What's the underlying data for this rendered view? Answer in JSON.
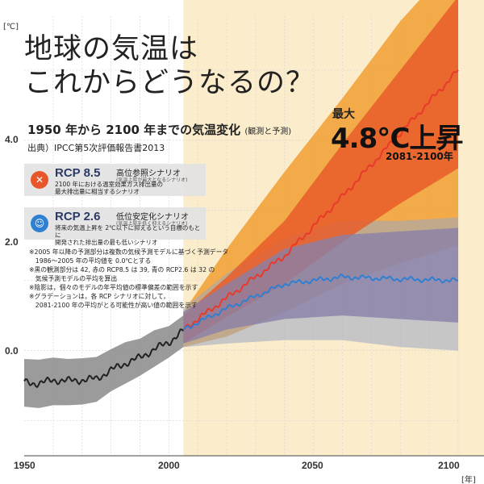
{
  "title_line1": "地球の気温は",
  "title_line2": "これからどうなるの？",
  "subtitle": "1950 年から 2100 年までの気温変化",
  "subtitle_note": "(観測と予測)",
  "source": "出典）IPCC第5次評価報告書2013",
  "callout": {
    "max_label": "最大",
    "value": "4.8℃上昇",
    "period": "2081-2100年"
  },
  "rcp85": {
    "name": "RCP 8.5",
    "kind": "高位参照シナリオ",
    "kind_sub": "(気温上昇が最大となるシナリオ)",
    "desc_line1": "2100 年における温室効果ガス排出量の",
    "desc_line2": "最大排出量に相当するシナリオ",
    "icon": "angry-face-icon",
    "color": "#e8572a"
  },
  "rcp26": {
    "name": "RCP 2.6",
    "kind": "低位安定化シナリオ",
    "kind_sub": "(気温上昇を低く抑えるシナリオ)",
    "desc_line1": "将来の気温上昇を 2℃以下に抑えるという目標のもとに",
    "desc_line2": "開発された排出量の最も低いシナリオ",
    "icon": "smiling-face-icon",
    "color": "#2f7fd2"
  },
  "notes": [
    "※2005 年以降の予測部分は複数の気候予測モデルに基づく予測データ",
    "　1986～2005 年の平均値を 0.0℃とする",
    "※黒の観測部分は 42, 赤の RCP8.5 は 39, 青の RCP2.6 は 32 の",
    "　気候予測モデルの平均を算出",
    "※陰影は，個々のモデルの年平均値の標準偏差の範囲を示す",
    "※グラデーションは，各 RCP シナリオに対して，",
    "　2081-2100 年の平均がとる可能性が高い値の範囲を示す"
  ],
  "axes": {
    "y_unit": "[℃]",
    "x_unit": "[年]",
    "y_ticks": [
      "4.0",
      "2.0",
      "0.0"
    ],
    "x_ticks": [
      "1950",
      "2000",
      "2050",
      "2100"
    ]
  },
  "colors": {
    "projection_bg": "#fbeccb",
    "rcp85_line": "#e83a2a",
    "rcp85_band": "#e85d2a",
    "rcp85_range": "#f2a33a",
    "rcp26_line": "#2f7fd2",
    "rcp26_band": "#8a7fa8",
    "rcp26_range": "#9aa7c2",
    "hist_line": "#222222",
    "hist_band": "#8a8a8a"
  },
  "chart_data": {
    "type": "line",
    "xlabel": "[年]",
    "ylabel": "[℃]",
    "xlim": [
      1950,
      2100
    ],
    "ylim": [
      -1.5,
      5.0
    ],
    "grid": true,
    "series": [
      {
        "name": "",
        "x": [
          1950,
          1955,
          1960,
          1965,
          1970,
          1975,
          1980,
          1985,
          1990,
          1995,
          2000,
          2005
        ],
        "values": [
          -0.45,
          -0.47,
          -0.42,
          -0.43,
          -0.42,
          -0.4,
          -0.28,
          -0.18,
          -0.1,
          0.02,
          0.12,
          0.28
        ],
        "band_low": [
          -0.8,
          -0.82,
          -0.78,
          -0.78,
          -0.77,
          -0.73,
          -0.58,
          -0.47,
          -0.36,
          -0.23,
          -0.1,
          0.05
        ],
        "band_high": [
          -0.12,
          -0.13,
          -0.1,
          -0.12,
          -0.11,
          -0.09,
          0.02,
          0.12,
          0.17,
          0.29,
          0.35,
          0.5
        ]
      },
      {
        "name": "RCP 8.5",
        "x": [
          2005,
          2020,
          2040,
          2060,
          2080,
          2100
        ],
        "values": [
          0.3,
          0.75,
          1.35,
          2.2,
          3.1,
          4.0
        ],
        "band_low": [
          0.1,
          0.48,
          0.95,
          1.55,
          2.1,
          2.6
        ],
        "band_high": [
          0.5,
          1.05,
          1.85,
          2.95,
          4.0,
          5.05
        ],
        "range_low": [
          0.05,
          0.2,
          0.55,
          0.95,
          1.25,
          1.5
        ],
        "range_high": [
          0.55,
          1.45,
          2.55,
          3.6,
          4.7,
          5.6
        ]
      },
      {
        "name": "RCP 2.6",
        "x": [
          2005,
          2020,
          2040,
          2060,
          2080,
          2100
        ],
        "values": [
          0.3,
          0.6,
          0.95,
          1.05,
          1.02,
          1.0
        ],
        "band_low": [
          0.1,
          0.3,
          0.45,
          0.5,
          0.45,
          0.4
        ],
        "band_high": [
          0.55,
          0.95,
          1.45,
          1.65,
          1.7,
          1.75
        ],
        "range_low": [
          0.05,
          0.1,
          0.15,
          0.15,
          0.05,
          0.0
        ],
        "range_high": [
          0.6,
          1.1,
          1.6,
          1.85,
          1.85,
          1.9
        ]
      }
    ]
  }
}
